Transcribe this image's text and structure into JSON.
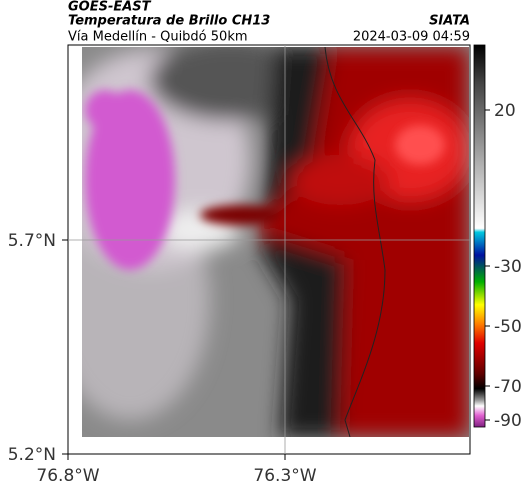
{
  "header": {
    "title": "GOES-EAST",
    "subtitle": "Temperatura de Brillo CH13",
    "region": "Vía Medellín - Quibdó 50km",
    "source": "SIATA",
    "timestamp": "2024-03-09 04:59"
  },
  "map": {
    "lat_ticks": [
      "5.7°N",
      "5.2°N"
    ],
    "lon_ticks": [
      "76.8°W",
      "76.3°W"
    ]
  },
  "colorbar": {
    "ticks": [
      20,
      -30,
      -50,
      -70,
      -90
    ]
  }
}
